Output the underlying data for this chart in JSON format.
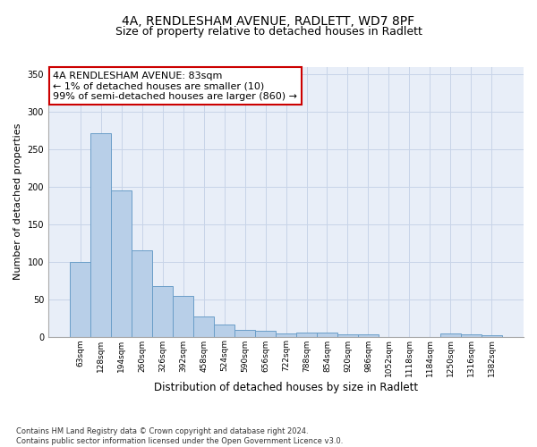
{
  "title1": "4A, RENDLESHAM AVENUE, RADLETT, WD7 8PF",
  "title2": "Size of property relative to detached houses in Radlett",
  "xlabel": "Distribution of detached houses by size in Radlett",
  "ylabel": "Number of detached properties",
  "categories": [
    "63sqm",
    "128sqm",
    "194sqm",
    "260sqm",
    "326sqm",
    "392sqm",
    "458sqm",
    "524sqm",
    "590sqm",
    "656sqm",
    "722sqm",
    "788sqm",
    "854sqm",
    "920sqm",
    "986sqm",
    "1052sqm",
    "1118sqm",
    "1184sqm",
    "1250sqm",
    "1316sqm",
    "1382sqm"
  ],
  "values": [
    100,
    272,
    195,
    115,
    68,
    54,
    27,
    16,
    9,
    8,
    4,
    5,
    6,
    3,
    3,
    0,
    0,
    0,
    4,
    3,
    2
  ],
  "bar_color": "#b8cfe8",
  "bar_edge_color": "#6a9ec8",
  "annotation_text": "4A RENDLESHAM AVENUE: 83sqm\n← 1% of detached houses are smaller (10)\n99% of semi-detached houses are larger (860) →",
  "annotation_box_color": "#ffffff",
  "annotation_box_edge_color": "#cc0000",
  "ylim": [
    0,
    360
  ],
  "yticks": [
    0,
    50,
    100,
    150,
    200,
    250,
    300,
    350
  ],
  "grid_color": "#c8d4e8",
  "bg_color": "#e8eef8",
  "footnote": "Contains HM Land Registry data © Crown copyright and database right 2024.\nContains public sector information licensed under the Open Government Licence v3.0.",
  "title1_fontsize": 10,
  "title2_fontsize": 9,
  "xlabel_fontsize": 8.5,
  "ylabel_fontsize": 8,
  "tick_fontsize": 6.5,
  "footnote_fontsize": 6,
  "annot_fontsize": 8
}
